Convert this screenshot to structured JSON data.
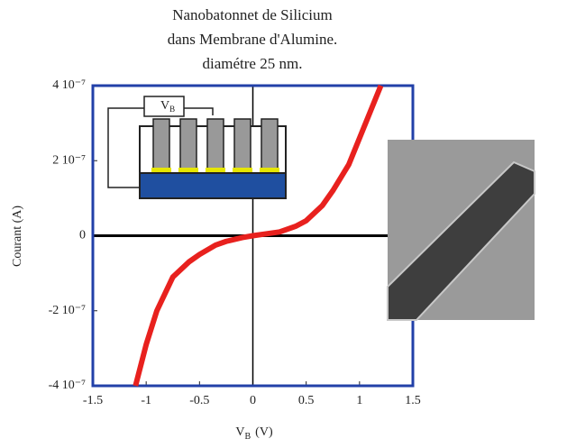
{
  "chart_data": {
    "type": "line",
    "title": [
      "Nanobatonnet de Silicium",
      "dans Membrane d'Alumine.",
      "diamétre 25 nm."
    ],
    "y_label": "Courant (A)",
    "x_label": {
      "main": "V",
      "sub": "B",
      "unit": "(V)"
    },
    "inset_label": {
      "main": "V",
      "sub": "B"
    },
    "x": [
      -1.1,
      -1.0,
      -0.9,
      -0.75,
      -0.6,
      -0.5,
      -0.35,
      -0.25,
      -0.1,
      0,
      0.1,
      0.25,
      0.4,
      0.5,
      0.65,
      0.75,
      0.9,
      1.0,
      1.1,
      1.2
    ],
    "series": [
      {
        "color": "#e8211e",
        "values": [
          -4e-07,
          -2.9e-07,
          -2e-07,
          -1.1e-07,
          -7e-08,
          -5e-08,
          -2.5e-08,
          -1.5e-08,
          -5e-09,
          0,
          4e-09,
          1e-08,
          2.5e-08,
          4e-08,
          8e-08,
          1.2e-07,
          1.9e-07,
          2.6e-07,
          3.3e-07,
          4e-07
        ]
      }
    ],
    "xlim": [
      -1.5,
      1.5
    ],
    "xticks": [
      -1.5,
      -1,
      -0.5,
      0,
      0.5,
      1,
      1.5
    ],
    "ylim": [
      -4e-07,
      4e-07
    ],
    "yticks": [
      {
        "value": -4e-07,
        "label": "-4 10⁻⁷"
      },
      {
        "value": -2e-07,
        "label": "-2 10⁻⁷"
      },
      0,
      {
        "value": 2e-07,
        "label": "2 10⁻⁷"
      },
      {
        "value": 4e-07,
        "label": "4 10⁻⁷"
      }
    ],
    "frame_color": "#2240a8"
  }
}
